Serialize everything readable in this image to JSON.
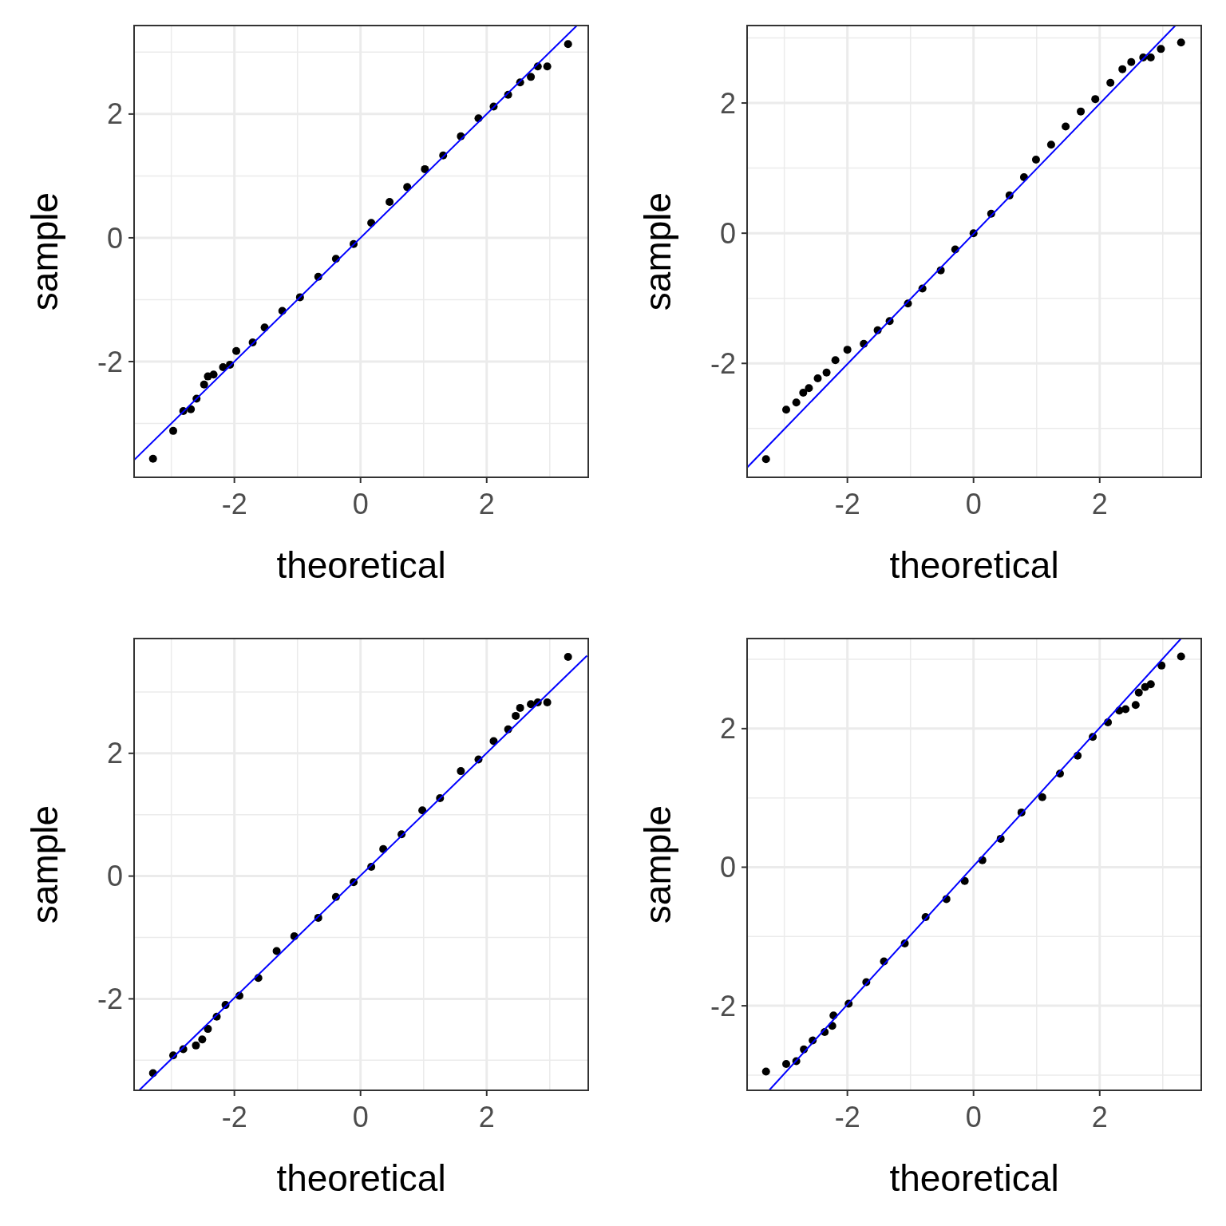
{
  "chart_data": [
    {
      "type": "scatter",
      "xlabel": "theoretical",
      "ylabel": "sample",
      "grid": true,
      "xlim": [
        -3.59,
        3.61
      ],
      "ylim": [
        -3.87,
        3.43
      ],
      "xticks": [
        {
          "value": -3,
          "label": null
        },
        -2,
        {
          "value": -1,
          "label": null
        },
        0,
        {
          "value": 1,
          "label": null
        },
        2,
        {
          "value": 3,
          "label": null
        }
      ],
      "yticks": [
        {
          "value": -3,
          "label": null
        },
        -2,
        {
          "value": -1,
          "label": null
        },
        0,
        {
          "value": 1,
          "label": null
        },
        2,
        {
          "value": 3,
          "label": null
        }
      ],
      "series": [
        {
          "type": "scatter",
          "marker": "circle",
          "color": "#000000",
          "x": [
            -3.29,
            -2.97,
            -2.81,
            -2.69,
            -2.6,
            -2.48,
            -2.42,
            -2.33,
            -2.18,
            -2.07,
            -1.97,
            -1.71,
            -1.52,
            -1.24,
            -0.96,
            -0.67,
            -0.39,
            -0.11,
            0.17,
            0.46,
            0.74,
            1.02,
            1.31,
            1.59,
            1.87,
            2.11,
            2.34,
            2.53,
            2.7,
            2.81,
            2.96,
            3.29
          ],
          "values": [
            -3.57,
            -3.12,
            -2.8,
            -2.77,
            -2.6,
            -2.37,
            -2.24,
            -2.21,
            -2.09,
            -2.05,
            -1.83,
            -1.69,
            -1.45,
            -1.18,
            -0.96,
            -0.63,
            -0.34,
            -0.1,
            0.24,
            0.58,
            0.82,
            1.11,
            1.33,
            1.64,
            1.93,
            2.12,
            2.31,
            2.51,
            2.6,
            2.77,
            2.77,
            3.13
          ]
        },
        {
          "type": "line",
          "marker": "none",
          "color": "#0000ff",
          "x": [
            -3.59,
            3.43
          ],
          "values": [
            -3.59,
            3.43
          ]
        }
      ]
    },
    {
      "type": "scatter",
      "xlabel": "theoretical",
      "ylabel": "sample",
      "grid": true,
      "xlim": [
        -3.59,
        3.61
      ],
      "ylim": [
        -3.75,
        3.19
      ],
      "xticks": [
        {
          "value": -3,
          "label": null
        },
        -2,
        {
          "value": -1,
          "label": null
        },
        0,
        {
          "value": 1,
          "label": null
        },
        2,
        {
          "value": 3,
          "label": null
        }
      ],
      "yticks": [
        {
          "value": -3,
          "label": null
        },
        -2,
        {
          "value": -1,
          "label": null
        },
        0,
        {
          "value": 1,
          "label": null
        },
        2,
        {
          "value": 3,
          "label": null
        }
      ],
      "series": [
        {
          "type": "scatter",
          "marker": "circle",
          "color": "#000000",
          "x": [
            -3.29,
            -2.97,
            -2.81,
            -2.7,
            -2.61,
            -2.47,
            -2.33,
            -2.19,
            -2.0,
            -1.74,
            -1.52,
            -1.33,
            -1.04,
            -0.81,
            -0.52,
            -0.29,
            0,
            0.28,
            0.57,
            0.8,
            0.99,
            1.23,
            1.46,
            1.7,
            1.93,
            2.17,
            2.36,
            2.5,
            2.69,
            2.81,
            2.97,
            3.29
          ],
          "values": [
            -3.47,
            -2.71,
            -2.6,
            -2.45,
            -2.38,
            -2.23,
            -2.14,
            -1.95,
            -1.79,
            -1.7,
            -1.49,
            -1.35,
            -1.08,
            -0.85,
            -0.57,
            -0.25,
            0,
            0.3,
            0.58,
            0.86,
            1.13,
            1.36,
            1.64,
            1.87,
            2.06,
            2.31,
            2.52,
            2.63,
            2.7,
            2.7,
            2.83,
            2.93
          ]
        },
        {
          "type": "line",
          "marker": "none",
          "color": "#0000ff",
          "x": [
            -3.59,
            3.2
          ],
          "values": [
            -3.6,
            3.19
          ]
        }
      ]
    },
    {
      "type": "scatter",
      "xlabel": "theoretical",
      "ylabel": "sample",
      "grid": true,
      "xlim": [
        -3.59,
        3.61
      ],
      "ylim": [
        -3.49,
        3.87
      ],
      "xticks": [
        {
          "value": -3,
          "label": null
        },
        -2,
        {
          "value": -1,
          "label": null
        },
        0,
        {
          "value": 1,
          "label": null
        },
        2,
        {
          "value": 3,
          "label": null
        }
      ],
      "yticks": [
        {
          "value": -3,
          "label": null
        },
        -2,
        {
          "value": -1,
          "label": null
        },
        0,
        {
          "value": 1,
          "label": null
        },
        2,
        {
          "value": 3,
          "label": null
        }
      ],
      "series": [
        {
          "type": "scatter",
          "marker": "circle",
          "color": "#000000",
          "x": [
            -3.29,
            -2.97,
            -2.81,
            -2.61,
            -2.51,
            -2.42,
            -2.28,
            -2.14,
            -1.92,
            -1.62,
            -1.33,
            -1.05,
            -0.67,
            -0.39,
            -0.11,
            0.17,
            0.36,
            0.65,
            0.98,
            1.26,
            1.59,
            1.87,
            2.11,
            2.34,
            2.46,
            2.53,
            2.7,
            2.81,
            2.96,
            3.29
          ],
          "values": [
            -3.21,
            -2.92,
            -2.82,
            -2.76,
            -2.66,
            -2.49,
            -2.29,
            -2.1,
            -1.95,
            -1.66,
            -1.22,
            -0.98,
            -0.68,
            -0.34,
            -0.1,
            0.15,
            0.44,
            0.68,
            1.07,
            1.27,
            1.71,
            1.9,
            2.2,
            2.39,
            2.61,
            2.74,
            2.8,
            2.83,
            2.83,
            3.57
          ]
        },
        {
          "type": "line",
          "marker": "none",
          "color": "#0000ff",
          "x": [
            -3.51,
            3.59
          ],
          "values": [
            -3.49,
            3.59
          ]
        }
      ]
    },
    {
      "type": "scatter",
      "xlabel": "theoretical",
      "ylabel": "sample",
      "grid": true,
      "xlim": [
        -3.59,
        3.61
      ],
      "ylim": [
        -3.22,
        3.3
      ],
      "xticks": [
        {
          "value": -3,
          "label": null
        },
        -2,
        {
          "value": -1,
          "label": null
        },
        0,
        {
          "value": 1,
          "label": null
        },
        2,
        {
          "value": 3,
          "label": null
        }
      ],
      "yticks": [
        {
          "value": -3,
          "label": null
        },
        -2,
        {
          "value": -1,
          "label": null
        },
        0,
        {
          "value": 1,
          "label": null
        },
        2,
        {
          "value": 3,
          "label": null
        }
      ],
      "series": [
        {
          "type": "scatter",
          "marker": "circle",
          "color": "#000000",
          "x": [
            -3.29,
            -2.97,
            -2.81,
            -2.69,
            -2.55,
            -2.36,
            -2.24,
            -2.22,
            -1.98,
            -1.7,
            -1.42,
            -1.09,
            -0.76,
            -0.43,
            -0.14,
            0.14,
            0.43,
            0.76,
            1.09,
            1.37,
            1.65,
            1.89,
            2.13,
            2.31,
            2.41,
            2.57,
            2.62,
            2.72,
            2.81,
            2.98,
            3.29
          ],
          "values": [
            -2.95,
            -2.84,
            -2.8,
            -2.63,
            -2.5,
            -2.38,
            -2.29,
            -2.14,
            -1.97,
            -1.66,
            -1.36,
            -1.1,
            -0.72,
            -0.46,
            -0.2,
            0.1,
            0.41,
            0.79,
            1.01,
            1.35,
            1.61,
            1.88,
            2.09,
            2.26,
            2.28,
            2.34,
            2.52,
            2.6,
            2.64,
            2.91,
            3.04
          ]
        },
        {
          "type": "line",
          "marker": "none",
          "color": "#0000ff",
          "x": [
            -3.24,
            3.29
          ],
          "values": [
            -3.22,
            3.3
          ]
        }
      ]
    }
  ]
}
